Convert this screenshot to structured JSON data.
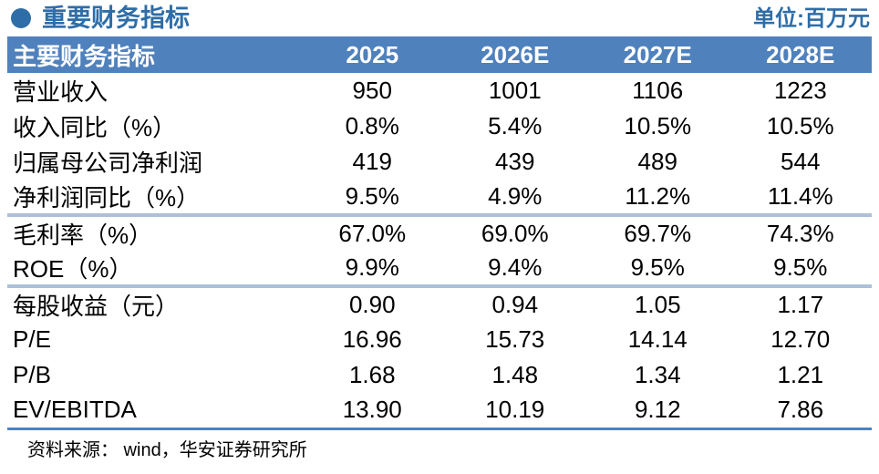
{
  "header": {
    "bullet_icon": "circle-bullet",
    "title": "重要财务指标",
    "unit": "单位:百万元"
  },
  "colors": {
    "accent_blue": "#2E6DA8",
    "table_header_bg": "#4F81BD",
    "separator_light": "#AEBFD8",
    "bottom_rule": "#4F81BD",
    "header_text": "#FFFFFF",
    "body_text": "#000000"
  },
  "table": {
    "header": {
      "label": "主要财务指标",
      "columns": [
        "2025",
        "2026E",
        "2027E",
        "2028E"
      ]
    },
    "rows": [
      {
        "label": "营业收入",
        "values": [
          "950",
          "1001",
          "1106",
          "1223"
        ],
        "separator_after": false
      },
      {
        "label": "收入同比（%）",
        "values": [
          "0.8%",
          "5.4%",
          "10.5%",
          "10.5%"
        ],
        "separator_after": false
      },
      {
        "label": "归属母公司净利润",
        "values": [
          "419",
          "439",
          "489",
          "544"
        ],
        "separator_after": false
      },
      {
        "label": "净利润同比（%）",
        "values": [
          "9.5%",
          "4.9%",
          "11.2%",
          "11.4%"
        ],
        "separator_after": true
      },
      {
        "label": "毛利率（%）",
        "values": [
          "67.0%",
          "69.0%",
          "69.7%",
          "74.3%"
        ],
        "separator_after": false
      },
      {
        "label": "ROE（%）",
        "values": [
          "9.9%",
          "9.4%",
          "9.5%",
          "9.5%"
        ],
        "separator_after": true
      },
      {
        "label": "每股收益（元）",
        "values": [
          "0.90",
          "0.94",
          "1.05",
          "1.17"
        ],
        "separator_after": false
      },
      {
        "label": "P/E",
        "values": [
          "16.96",
          "15.73",
          "14.14",
          "12.70"
        ],
        "separator_after": false
      },
      {
        "label": "P/B",
        "values": [
          "1.68",
          "1.48",
          "1.34",
          "1.21"
        ],
        "separator_after": false
      },
      {
        "label": "EV/EBITDA",
        "values": [
          "13.90",
          "10.19",
          "9.12",
          "7.86"
        ],
        "separator_after": false
      }
    ],
    "source": "资料来源：  wind，华安证券研究所"
  }
}
